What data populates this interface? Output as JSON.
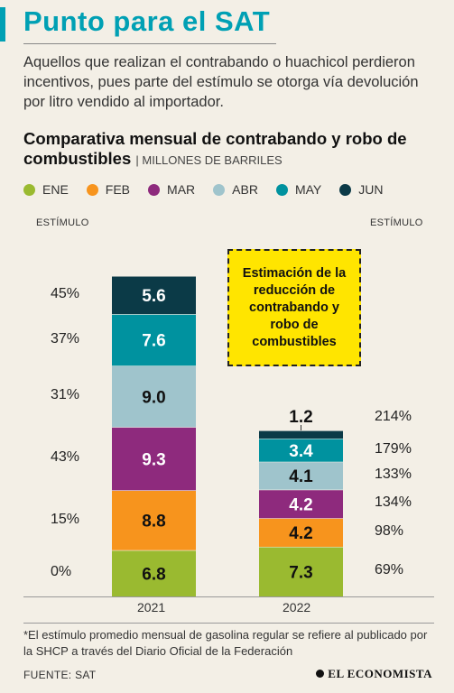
{
  "header": {
    "title": "Punto para el SAT",
    "lead": "Aquellos que realizan el contrabando o huachicol perdieron incentivos, pues parte del estímulo se otorga vía devolución por litro vendido al importador."
  },
  "chart_data": {
    "type": "bar",
    "stacked": true,
    "title": "Comparativa mensual de contrabando y robo de combustibles",
    "unit": "MILLONES DE BARRILES",
    "categories": [
      "2021",
      "2022"
    ],
    "series": [
      {
        "name": "ENE",
        "color": "#9aba30",
        "values": [
          6.8,
          7.3
        ]
      },
      {
        "name": "FEB",
        "color": "#f7941d",
        "values": [
          8.8,
          4.2
        ]
      },
      {
        "name": "MAR",
        "color": "#8e2a7d",
        "values": [
          9.3,
          4.2
        ]
      },
      {
        "name": "ABR",
        "color": "#9fc4cc",
        "values": [
          9.0,
          4.1
        ]
      },
      {
        "name": "MAY",
        "color": "#00929f",
        "values": [
          7.6,
          3.4
        ]
      },
      {
        "name": "JUN",
        "color": "#0b3a47",
        "values": [
          5.6,
          1.2
        ]
      }
    ],
    "value_labels": {
      "2021": [
        "6.8",
        "8.8",
        "9.3",
        "9.0",
        "7.6",
        "5.6"
      ],
      "2022": [
        "7.3",
        "4.2",
        "4.2",
        "4.1",
        "3.4",
        "1.2"
      ]
    },
    "stimulus_heading": "ESTÍMULO",
    "stimulus_2021": [
      "0%",
      "15%",
      "43%",
      "31%",
      "37%",
      "45%"
    ],
    "stimulus_2022": [
      "69%",
      "98%",
      "134%",
      "133%",
      "179%",
      "214%"
    ],
    "annotation": "Estimación de la reducción de contrabando y robo de combustibles",
    "grid": false,
    "legend_position": "top-left"
  },
  "footer": {
    "note": "*El estímulo promedio mensual de gasolina regular se refiere al publicado por la SHCP a través del Diario Oficial de la Federación",
    "source": "FUENTE: SAT",
    "brand": "EL ECONOMISTA"
  }
}
